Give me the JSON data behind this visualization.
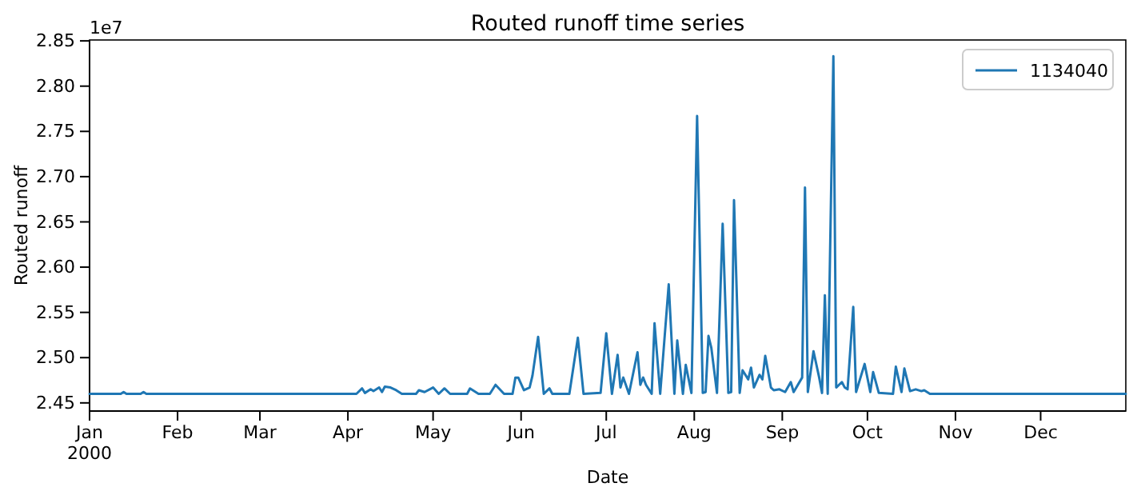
{
  "chart_data": {
    "type": "line",
    "title": "Routed runoff time series",
    "xlabel": "Date",
    "ylabel": "Routed runoff",
    "annotations": [
      "1e7"
    ],
    "legend": "top right",
    "grid": false,
    "xlim": [
      "2000-01-01",
      "2000-12-31"
    ],
    "xticks": [
      {
        "value": "2000-01-01",
        "label": "Jan\n2000"
      },
      {
        "value": "2000-02-01",
        "label": "Feb"
      },
      {
        "value": "2000-03-01",
        "label": "Mar"
      },
      {
        "value": "2000-04-01",
        "label": "Apr"
      },
      {
        "value": "2000-05-01",
        "label": "May"
      },
      {
        "value": "2000-06-01",
        "label": "Jun"
      },
      {
        "value": "2000-07-01",
        "label": "Jul"
      },
      {
        "value": "2000-08-01",
        "label": "Aug"
      },
      {
        "value": "2000-09-01",
        "label": "Sep"
      },
      {
        "value": "2000-10-01",
        "label": "Oct"
      },
      {
        "value": "2000-11-01",
        "label": "Nov"
      },
      {
        "value": "2000-12-01",
        "label": "Dec"
      }
    ],
    "ylim": [
      2.441,
      2.851
    ],
    "yticks": [
      2.45,
      {
        "value": 2.5,
        "label": "2.50"
      },
      2.55,
      {
        "value": 2.6,
        "label": "2.60"
      },
      2.65,
      {
        "value": 2.7,
        "label": "2.70"
      },
      2.75,
      {
        "value": 2.8,
        "label": "2.80"
      },
      2.85
    ],
    "x": [
      "2000-01-01",
      "2000-01-12",
      "2000-01-13",
      "2000-01-14",
      "2000-01-19",
      "2000-01-20",
      "2000-01-21",
      "2000-04-04",
      "2000-04-06",
      "2000-04-07",
      "2000-04-09",
      "2000-04-10",
      "2000-04-12",
      "2000-04-13",
      "2000-04-14",
      "2000-04-16",
      "2000-04-18",
      "2000-04-20",
      "2000-04-25",
      "2000-04-26",
      "2000-04-28",
      "2000-05-01",
      "2000-05-03",
      "2000-05-05",
      "2000-05-07",
      "2000-05-13",
      "2000-05-14",
      "2000-05-17",
      "2000-05-21",
      "2000-05-23",
      "2000-05-26",
      "2000-05-29",
      "2000-05-30",
      "2000-05-31",
      "2000-06-02",
      "2000-06-04",
      "2000-06-05",
      "2000-06-07",
      "2000-06-09",
      "2000-06-11",
      "2000-06-12",
      "2000-06-18",
      "2000-06-21",
      "2000-06-23",
      "2000-06-29",
      "2000-07-01",
      "2000-07-03",
      "2000-07-05",
      "2000-07-06",
      "2000-07-07",
      "2000-07-09",
      "2000-07-12",
      "2000-07-13",
      "2000-07-14",
      "2000-07-15",
      "2000-07-17",
      "2000-07-18",
      "2000-07-20",
      "2000-07-23",
      "2000-07-25",
      "2000-07-26",
      "2000-07-28",
      "2000-07-29",
      "2000-07-31",
      "2000-08-02",
      "2000-08-04",
      "2000-08-05",
      "2000-08-06",
      "2000-08-07",
      "2000-08-09",
      "2000-08-11",
      "2000-08-13",
      "2000-08-14",
      "2000-08-15",
      "2000-08-17",
      "2000-08-18",
      "2000-08-20",
      "2000-08-21",
      "2000-08-22",
      "2000-08-24",
      "2000-08-25",
      "2000-08-26",
      "2000-08-28",
      "2000-08-29",
      "2000-08-31",
      "2000-09-02",
      "2000-09-04",
      "2000-09-05",
      "2000-09-08",
      "2000-09-09",
      "2000-09-10",
      "2000-09-12",
      "2000-09-14",
      "2000-09-15",
      "2000-09-16",
      "2000-09-17",
      "2000-09-19",
      "2000-09-20",
      "2000-09-22",
      "2000-09-23",
      "2000-09-24",
      "2000-09-26",
      "2000-09-27",
      "2000-09-30",
      "2000-10-02",
      "2000-10-03",
      "2000-10-05",
      "2000-10-10",
      "2000-10-11",
      "2000-10-13",
      "2000-10-14",
      "2000-10-16",
      "2000-10-18",
      "2000-10-20",
      "2000-10-21",
      "2000-10-23",
      "2000-12-31"
    ],
    "series": [
      {
        "name": "1134040",
        "color": "#1f77b4",
        "values": [
          2.46,
          2.46,
          2.462,
          2.46,
          2.46,
          2.462,
          2.46,
          2.46,
          2.466,
          2.461,
          2.465,
          2.463,
          2.467,
          2.462,
          2.468,
          2.467,
          2.464,
          2.46,
          2.46,
          2.464,
          2.462,
          2.467,
          2.46,
          2.466,
          2.46,
          2.46,
          2.466,
          2.46,
          2.46,
          2.47,
          2.46,
          2.46,
          2.478,
          2.478,
          2.464,
          2.467,
          2.48,
          2.523,
          2.46,
          2.466,
          2.46,
          2.46,
          2.522,
          2.46,
          2.461,
          2.527,
          2.46,
          2.503,
          2.467,
          2.478,
          2.46,
          2.506,
          2.47,
          2.478,
          2.47,
          2.46,
          2.538,
          2.46,
          2.581,
          2.46,
          2.519,
          2.46,
          2.492,
          2.461,
          2.767,
          2.461,
          2.462,
          2.524,
          2.511,
          2.461,
          2.648,
          2.461,
          2.462,
          2.674,
          2.461,
          2.486,
          2.476,
          2.489,
          2.467,
          2.481,
          2.476,
          2.502,
          2.467,
          2.464,
          2.465,
          2.462,
          2.473,
          2.462,
          2.478,
          2.688,
          2.462,
          2.507,
          2.478,
          2.461,
          2.569,
          2.46,
          2.833,
          2.467,
          2.473,
          2.467,
          2.465,
          2.556,
          2.462,
          2.493,
          2.462,
          2.484,
          2.461,
          2.46,
          2.49,
          2.462,
          2.488,
          2.463,
          2.465,
          2.463,
          2.464,
          2.46,
          2.46
        ]
      }
    ]
  }
}
